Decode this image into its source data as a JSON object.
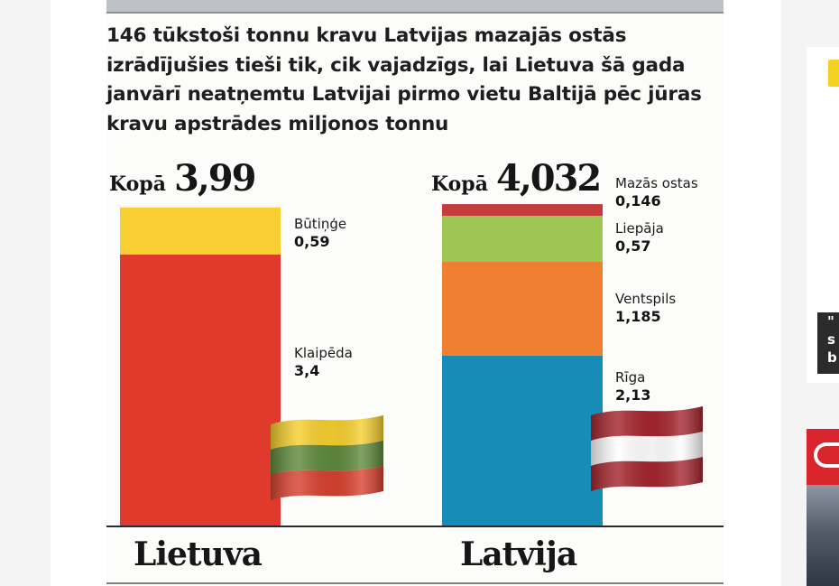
{
  "headline": "146 tūkstoši tonnu kravu Latvijas mazajās ostās izrādījušies tieši tik, cik vajadzīgs, lai Lietuva šā gada janvārī neatņemtu Latvijai pirmo vietu Baltijā pēc jūras kravu apstrādes miljonos tonnu",
  "right_rail": {
    "dark_card_text": "\" s b"
  },
  "chart_data": {
    "type": "bar",
    "stacked": true,
    "unit": "miljoni tonnu",
    "total_label": "Kopā",
    "ylim": [
      0,
      4.032
    ],
    "categories": [
      "Lietuva",
      "Latvija"
    ],
    "bars": [
      {
        "category": "Lietuva",
        "total_label": "Kopā",
        "total": "3,99",
        "segments": [
          {
            "name": "Klaipēda",
            "value": 3.4,
            "label": "3,4",
            "color": "#df3a2b"
          },
          {
            "name": "Būtiņģe",
            "value": 0.59,
            "label": "0,59",
            "color": "#f9cf33"
          }
        ]
      },
      {
        "category": "Latvija",
        "total_label": "Kopā",
        "total": "4,032",
        "segments": [
          {
            "name": "Rīga",
            "value": 2.13,
            "label": "2,13",
            "color": "#178cb6"
          },
          {
            "name": "Ventspils",
            "value": 1.185,
            "label": "1,185",
            "color": "#ef8032"
          },
          {
            "name": "Liepāja",
            "value": 0.57,
            "label": "0,57",
            "color": "#9fc552"
          },
          {
            "name": "Mazās ostas",
            "value": 0.146,
            "label": "0,146",
            "color": "#c53c3c"
          }
        ]
      }
    ],
    "flags": {
      "Lietuva": [
        "#f6cf2e",
        "#5f8a3c",
        "#d8412f"
      ],
      "Latvija": [
        "#a5252e",
        "#ffffff",
        "#a5252e"
      ]
    }
  }
}
